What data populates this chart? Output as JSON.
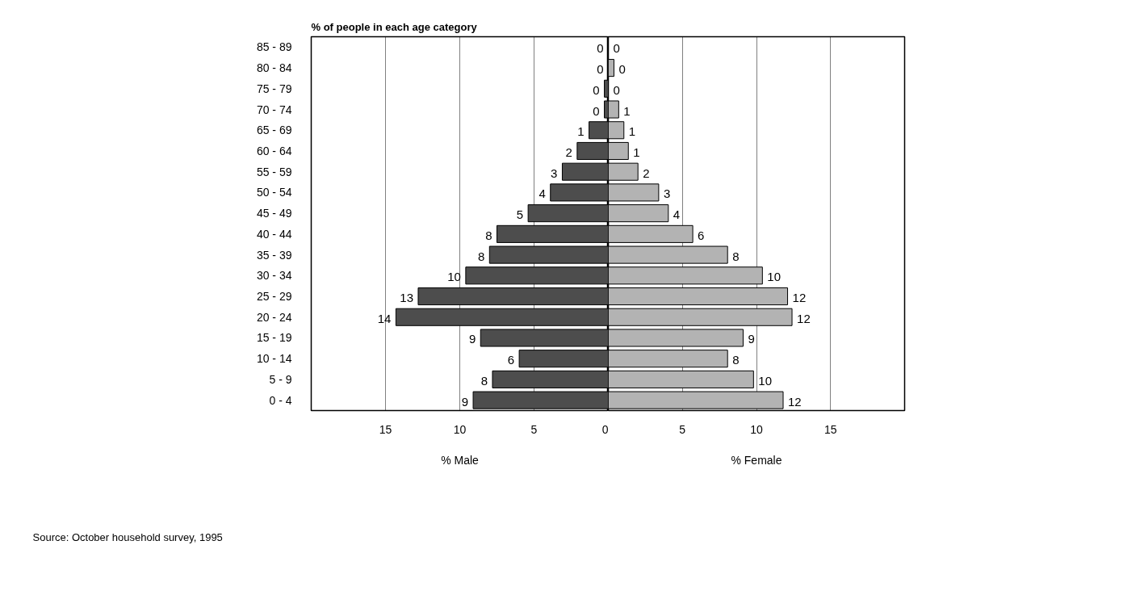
{
  "chart_data": [
    {
      "type": "bar",
      "orientation": "horizontal",
      "title": "% of people in each age category",
      "xlabel": "% Male",
      "categories": [
        "85 - 89",
        "80 - 84",
        "75 - 79",
        "70 - 74",
        "65 - 69",
        "60 - 64",
        "55 - 59",
        "50 - 54",
        "45 - 49",
        "40 - 44",
        "35 - 39",
        "30 - 34",
        "25 - 29",
        "20 - 24",
        "15 - 19",
        "10 - 14",
        "5 - 9",
        "0 - 4"
      ],
      "series": [
        {
          "color": "#4d4d4d",
          "values": [
            0,
            0,
            0.27,
            0.27,
            1.3,
            2.1,
            3.1,
            3.9,
            5.4,
            7.5,
            8.0,
            9.6,
            12.8,
            14.3,
            8.6,
            6.0,
            7.8,
            9.1
          ],
          "value_labels": [
            "0",
            "0",
            "0",
            "0",
            "1",
            "2",
            "3",
            "4",
            "5",
            "8",
            "8",
            "10",
            "13",
            "14",
            "9",
            "6",
            "8",
            "9"
          ]
        }
      ],
      "xlim": [
        20,
        0
      ],
      "xticks": [
        15,
        10,
        5,
        0
      ],
      "grid": "x",
      "annotations": [
        "Source: October household survey, 1995"
      ]
    },
    {
      "type": "bar",
      "orientation": "horizontal",
      "xlabel": "% Female",
      "tick_labels": "x",
      "categories": [
        null,
        null,
        null,
        null,
        null,
        null,
        null,
        null,
        null,
        null,
        null,
        null,
        null,
        null,
        null,
        null,
        null,
        null
      ],
      "series": [
        {
          "color": "#b3b3b3",
          "values": [
            0,
            0.38,
            0,
            0.7,
            1.05,
            1.35,
            2.0,
            3.4,
            4.05,
            5.7,
            8.05,
            10.4,
            12.1,
            12.4,
            9.1,
            8.05,
            9.8,
            11.8
          ],
          "value_labels": [
            "0",
            "0",
            "0",
            "1",
            "1",
            "1",
            "2",
            "3",
            "4",
            "6",
            "8",
            "10",
            "12",
            "12",
            "9",
            "8",
            "10",
            "12"
          ]
        }
      ],
      "xlim": [
        0,
        20
      ],
      "xticks": [
        5,
        10,
        15
      ],
      "grid": "x"
    }
  ]
}
